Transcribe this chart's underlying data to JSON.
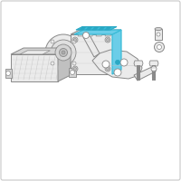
{
  "bg_color": "#ffffff",
  "border_color": "#c8c8c8",
  "outline_color": "#888888",
  "highlight_color": "#3bbcd8",
  "highlight_fill": "#6bcde8",
  "highlight_dark": "#2aa8c4",
  "light_fill": "#ebebeb",
  "mid_fill": "#d5d5d5",
  "dark_fill": "#c0c0c0",
  "fig_width": 2.0,
  "fig_height": 2.0,
  "dpi": 100
}
